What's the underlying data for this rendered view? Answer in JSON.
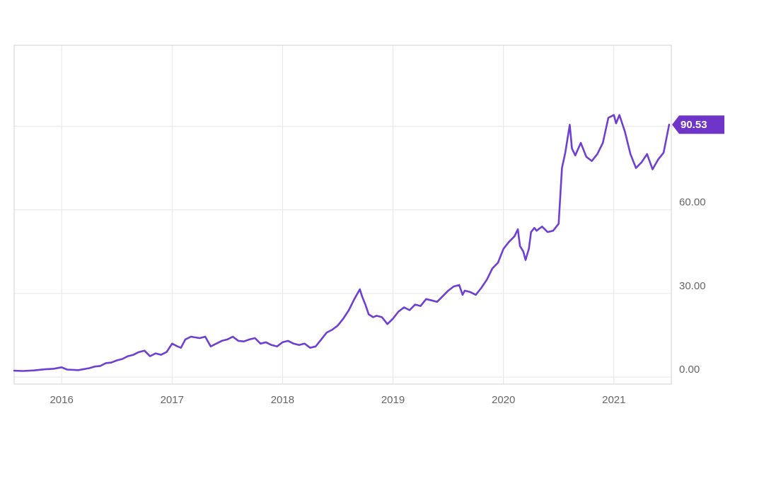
{
  "colors": {
    "line": "#6f3fd3",
    "badge": "#6f35c8",
    "grid": "#e6e6e6",
    "frame": "#d0d0d0",
    "tick_text": "#666666"
  },
  "chart_data": {
    "type": "line",
    "title": "",
    "xlabel": "",
    "ylabel": "",
    "x_tick_labels": [
      "2016",
      "2017",
      "2018",
      "2019",
      "2020",
      "2021"
    ],
    "y_tick_labels": [
      "0.00",
      "30.00",
      "60.00"
    ],
    "ylim": [
      -2.5,
      119
    ],
    "xlim": [
      2015.57,
      2021.52
    ],
    "grid": true,
    "last_value_label": "90.53",
    "series": [
      {
        "name": "",
        "points": [
          [
            2015.57,
            2.3
          ],
          [
            2015.65,
            2.2
          ],
          [
            2015.75,
            2.4
          ],
          [
            2015.85,
            2.8
          ],
          [
            2015.93,
            3.0
          ],
          [
            2016.0,
            3.5
          ],
          [
            2016.05,
            2.7
          ],
          [
            2016.15,
            2.5
          ],
          [
            2016.25,
            3.2
          ],
          [
            2016.3,
            3.8
          ],
          [
            2016.35,
            4.0
          ],
          [
            2016.4,
            5.0
          ],
          [
            2016.45,
            5.2
          ],
          [
            2016.5,
            6.0
          ],
          [
            2016.55,
            6.5
          ],
          [
            2016.6,
            7.5
          ],
          [
            2016.65,
            8.0
          ],
          [
            2016.7,
            9.0
          ],
          [
            2016.75,
            9.5
          ],
          [
            2016.8,
            7.5
          ],
          [
            2016.85,
            8.5
          ],
          [
            2016.9,
            8.0
          ],
          [
            2016.95,
            9.0
          ],
          [
            2017.0,
            12.0
          ],
          [
            2017.05,
            11.0
          ],
          [
            2017.08,
            10.5
          ],
          [
            2017.12,
            13.5
          ],
          [
            2017.17,
            14.5
          ],
          [
            2017.25,
            14.0
          ],
          [
            2017.3,
            14.5
          ],
          [
            2017.35,
            11.0
          ],
          [
            2017.4,
            12.0
          ],
          [
            2017.45,
            13.0
          ],
          [
            2017.5,
            13.5
          ],
          [
            2017.55,
            14.5
          ],
          [
            2017.6,
            13.0
          ],
          [
            2017.65,
            12.8
          ],
          [
            2017.7,
            13.5
          ],
          [
            2017.75,
            14.0
          ],
          [
            2017.8,
            12.0
          ],
          [
            2017.85,
            12.5
          ],
          [
            2017.9,
            11.5
          ],
          [
            2017.95,
            11.0
          ],
          [
            2018.0,
            12.5
          ],
          [
            2018.05,
            13.0
          ],
          [
            2018.1,
            12.0
          ],
          [
            2018.15,
            11.5
          ],
          [
            2018.2,
            12.0
          ],
          [
            2018.25,
            10.5
          ],
          [
            2018.3,
            11.0
          ],
          [
            2018.35,
            13.5
          ],
          [
            2018.4,
            16.0
          ],
          [
            2018.45,
            17.0
          ],
          [
            2018.5,
            18.5
          ],
          [
            2018.55,
            21.0
          ],
          [
            2018.6,
            24.0
          ],
          [
            2018.65,
            28.0
          ],
          [
            2018.7,
            31.5
          ],
          [
            2018.72,
            29.0
          ],
          [
            2018.75,
            26.0
          ],
          [
            2018.78,
            22.5
          ],
          [
            2018.82,
            21.5
          ],
          [
            2018.85,
            22.0
          ],
          [
            2018.9,
            21.5
          ],
          [
            2018.95,
            19.0
          ],
          [
            2019.0,
            21.0
          ],
          [
            2019.05,
            23.5
          ],
          [
            2019.1,
            25.0
          ],
          [
            2019.15,
            24.0
          ],
          [
            2019.2,
            26.0
          ],
          [
            2019.25,
            25.5
          ],
          [
            2019.3,
            28.0
          ],
          [
            2019.35,
            27.5
          ],
          [
            2019.4,
            27.0
          ],
          [
            2019.45,
            29.0
          ],
          [
            2019.5,
            31.0
          ],
          [
            2019.55,
            32.5
          ],
          [
            2019.6,
            33.0
          ],
          [
            2019.63,
            29.5
          ],
          [
            2019.65,
            31.0
          ],
          [
            2019.7,
            30.5
          ],
          [
            2019.75,
            29.5
          ],
          [
            2019.8,
            32.0
          ],
          [
            2019.85,
            35.0
          ],
          [
            2019.9,
            39.0
          ],
          [
            2019.95,
            41.0
          ],
          [
            2020.0,
            46.0
          ],
          [
            2020.05,
            48.5
          ],
          [
            2020.1,
            50.5
          ],
          [
            2020.13,
            53.0
          ],
          [
            2020.15,
            47.0
          ],
          [
            2020.18,
            45.0
          ],
          [
            2020.2,
            42.0
          ],
          [
            2020.23,
            46.0
          ],
          [
            2020.25,
            52.0
          ],
          [
            2020.28,
            53.5
          ],
          [
            2020.3,
            52.5
          ],
          [
            2020.35,
            54.0
          ],
          [
            2020.4,
            52.0
          ],
          [
            2020.45,
            52.5
          ],
          [
            2020.5,
            55.0
          ],
          [
            2020.53,
            75.0
          ],
          [
            2020.56,
            80.5
          ],
          [
            2020.6,
            90.5
          ],
          [
            2020.62,
            82.0
          ],
          [
            2020.65,
            79.5
          ],
          [
            2020.7,
            84.0
          ],
          [
            2020.75,
            79.0
          ],
          [
            2020.8,
            77.5
          ],
          [
            2020.85,
            80.0
          ],
          [
            2020.9,
            84.0
          ],
          [
            2020.95,
            93.0
          ],
          [
            2021.0,
            94.0
          ],
          [
            2021.02,
            91.0
          ],
          [
            2021.05,
            94.0
          ],
          [
            2021.1,
            88.0
          ],
          [
            2021.15,
            80.0
          ],
          [
            2021.2,
            75.0
          ],
          [
            2021.25,
            77.0
          ],
          [
            2021.3,
            80.0
          ],
          [
            2021.35,
            74.5
          ],
          [
            2021.4,
            78.0
          ],
          [
            2021.45,
            80.5
          ],
          [
            2021.5,
            90.53
          ]
        ]
      }
    ]
  }
}
